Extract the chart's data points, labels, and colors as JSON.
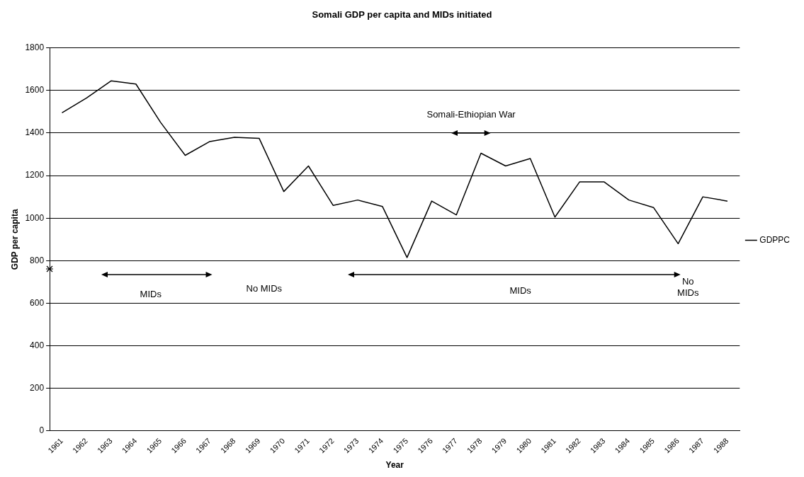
{
  "chart_data": {
    "type": "line",
    "title": "Somali GDP per capita and MIDs initiated",
    "xlabel": "Year",
    "ylabel": "GDP per capita",
    "categories": [
      "1961",
      "1962",
      "1963",
      "1964",
      "1965",
      "1966",
      "1967",
      "1968",
      "1969",
      "1970",
      "1971",
      "1972",
      "1973",
      "1974",
      "1975",
      "1976",
      "1977",
      "1978",
      "1979",
      "1980",
      "1981",
      "1982",
      "1983",
      "1984",
      "1985",
      "1986",
      "1987",
      "1988"
    ],
    "series": [
      {
        "name": "GDPPC",
        "color": "#000000",
        "values": [
          1495,
          1565,
          1645,
          1630,
          1450,
          1295,
          1360,
          1380,
          1375,
          1125,
          1245,
          1060,
          1085,
          1055,
          815,
          1080,
          1015,
          1305,
          1245,
          1280,
          1005,
          1170,
          1170,
          1085,
          1050,
          880,
          1100,
          1080
        ]
      }
    ],
    "ylim": [
      0,
      1800
    ],
    "yticks": [
      0,
      200,
      400,
      600,
      800,
      1000,
      1200,
      1400,
      1600,
      1800
    ],
    "grid": "y",
    "legend": "right",
    "marker": "none",
    "line_style": "solid",
    "annotations": [
      "MIDs",
      "No MIDs",
      "MIDs",
      "No MIDs",
      "Somali-Ethiopian War"
    ]
  }
}
